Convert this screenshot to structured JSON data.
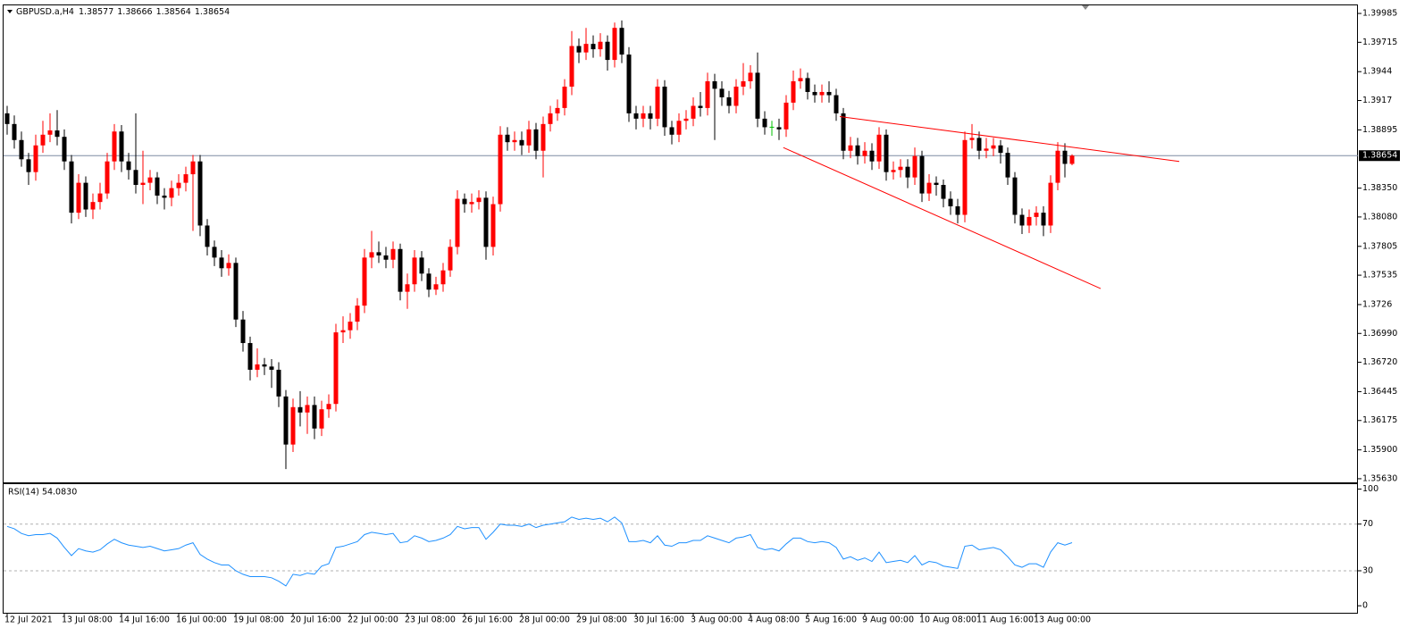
{
  "chart_data": [
    {
      "type": "candlestick",
      "title": "GBPUSD.a,H4",
      "categories": [
        "12 Jul 2021",
        null,
        null,
        null,
        null,
        null,
        null,
        null,
        "13 Jul 08:00",
        null,
        null,
        null,
        null,
        null,
        null,
        null,
        "14 Jul 16:00",
        null,
        null,
        null,
        null,
        null,
        null,
        null,
        "16 Jul 00:00",
        null,
        null,
        null,
        null,
        null,
        null,
        null,
        "19 Jul 08:00",
        null,
        null,
        null,
        null,
        null,
        null,
        null,
        "20 Jul 16:00",
        null,
        null,
        null,
        null,
        null,
        null,
        null,
        "22 Jul 00:00",
        null,
        null,
        null,
        null,
        null,
        null,
        null,
        "23 Jul 08:00",
        null,
        null,
        null,
        null,
        null,
        null,
        null,
        "26 Jul 16:00",
        null,
        null,
        null,
        null,
        null,
        null,
        null,
        "28 Jul 00:00",
        null,
        null,
        null,
        null,
        null,
        null,
        null,
        "29 Jul 08:00",
        null,
        null,
        null,
        null,
        null,
        null,
        null,
        "30 Jul 16:00",
        null,
        null,
        null,
        null,
        null,
        null,
        null,
        "3 Aug 00:00",
        null,
        null,
        null,
        null,
        null,
        null,
        null,
        "4 Aug 08:00",
        null,
        null,
        null,
        null,
        null,
        null,
        null,
        "5 Aug 16:00",
        null,
        null,
        null,
        null,
        null,
        null,
        null,
        "9 Aug 00:00",
        null,
        null,
        null,
        null,
        null,
        null,
        null,
        "10 Aug 08:00",
        null,
        null,
        null,
        null,
        null,
        null,
        null,
        "11 Aug 16:00",
        null,
        null,
        null,
        null,
        null,
        null,
        null,
        "13 Aug 00:00",
        null,
        null,
        null,
        null,
        null
      ],
      "open": [
        1.3905,
        1.3895,
        1.388,
        1.3862,
        1.385,
        1.3875,
        1.3885,
        1.3889,
        1.3883,
        1.386,
        1.3812,
        1.384,
        1.3815,
        1.3822,
        1.383,
        1.386,
        1.3888,
        1.386,
        1.3852,
        1.3838,
        1.384,
        1.3845,
        1.3828,
        1.3826,
        1.3835,
        1.384,
        1.3848,
        1.386,
        1.38,
        1.378,
        1.377,
        1.376,
        1.3765,
        1.3712,
        1.369,
        1.3665,
        1.367,
        1.3668,
        1.3665,
        1.364,
        1.3595,
        1.363,
        1.3625,
        1.3632,
        1.361,
        1.3628,
        1.3633,
        1.37,
        1.3702,
        1.371,
        1.3725,
        1.377,
        1.3775,
        1.3772,
        1.3768,
        1.3778,
        1.3738,
        1.3745,
        1.377,
        1.3755,
        1.374,
        1.3745,
        1.3758,
        1.378,
        1.3825,
        1.382,
        1.3822,
        1.3826,
        1.378,
        1.382,
        1.3885,
        1.3878,
        1.388,
        1.3875,
        1.389,
        1.387,
        1.3895,
        1.3905,
        1.391,
        1.393,
        1.3968,
        1.3962,
        1.397,
        1.3965,
        1.3972,
        1.3955,
        1.3985,
        1.396,
        1.3905,
        1.39,
        1.3905,
        1.39,
        1.393,
        1.3892,
        1.3885,
        1.3898,
        1.39,
        1.3912,
        1.391,
        1.3935,
        1.3928,
        1.392,
        1.3912,
        1.393,
        1.3935,
        1.3943,
        1.39,
        1.3892,
        1.3892,
        1.389,
        1.3915,
        1.3935,
        1.3938,
        1.3925,
        1.3922,
        1.3925,
        1.3922,
        1.3905,
        1.387,
        1.3875,
        1.3865,
        1.387,
        1.386,
        1.3885,
        1.385,
        1.3852,
        1.3855,
        1.3845,
        1.3865,
        1.383,
        1.384,
        1.3838,
        1.3825,
        1.3818,
        1.381,
        1.388,
        1.3882,
        1.387,
        1.3872,
        1.3875,
        1.3868,
        1.3845,
        1.381,
        1.38,
        1.3808,
        1.3812,
        1.38,
        1.384,
        1.387,
        1.38577
      ],
      "high": [
        1.3912,
        1.3903,
        1.3888,
        1.3868,
        1.3885,
        1.3898,
        1.3905,
        1.3908,
        1.389,
        1.3866,
        1.3848,
        1.3846,
        1.383,
        1.384,
        1.3868,
        1.3895,
        1.3894,
        1.3868,
        1.3905,
        1.387,
        1.3852,
        1.385,
        1.3835,
        1.3842,
        1.3848,
        1.3855,
        1.3866,
        1.3866,
        1.3806,
        1.3786,
        1.3777,
        1.3773,
        1.377,
        1.372,
        1.3696,
        1.3685,
        1.3676,
        1.3675,
        1.3672,
        1.3646,
        1.3638,
        1.3645,
        1.364,
        1.364,
        1.3636,
        1.3642,
        1.3708,
        1.3715,
        1.3718,
        1.3732,
        1.3778,
        1.3795,
        1.3785,
        1.378,
        1.3785,
        1.3783,
        1.3755,
        1.3777,
        1.3776,
        1.376,
        1.3752,
        1.3765,
        1.3787,
        1.3833,
        1.383,
        1.383,
        1.3833,
        1.3832,
        1.3827,
        1.3893,
        1.3892,
        1.3888,
        1.3888,
        1.3898,
        1.3896,
        1.3902,
        1.3912,
        1.3918,
        1.3937,
        1.3982,
        1.3975,
        1.3985,
        1.3978,
        1.398,
        1.3978,
        1.399,
        1.3992,
        1.3967,
        1.3912,
        1.3912,
        1.3912,
        1.3937,
        1.3936,
        1.3898,
        1.3905,
        1.3908,
        1.392,
        1.3925,
        1.3943,
        1.3942,
        1.3935,
        1.3926,
        1.3937,
        1.3952,
        1.395,
        1.3962,
        1.3907,
        1.3898,
        1.39,
        1.3922,
        1.3945,
        1.3947,
        1.3943,
        1.3932,
        1.3932,
        1.3935,
        1.3928,
        1.391,
        1.3883,
        1.3882,
        1.3878,
        1.3877,
        1.3892,
        1.389,
        1.386,
        1.3862,
        1.3862,
        1.3873,
        1.387,
        1.3848,
        1.3846,
        1.3843,
        1.3832,
        1.3825,
        1.3888,
        1.3895,
        1.3888,
        1.3882,
        1.3882,
        1.388,
        1.3873,
        1.385,
        1.3816,
        1.3815,
        1.3818,
        1.3818,
        1.3847,
        1.3878,
        1.3877,
        1.38666
      ],
      "low": [
        1.3885,
        1.3872,
        1.3855,
        1.3838,
        1.3842,
        1.3868,
        1.3878,
        1.3875,
        1.3852,
        1.3802,
        1.3806,
        1.3808,
        1.3806,
        1.3815,
        1.3825,
        1.3852,
        1.385,
        1.3843,
        1.383,
        1.382,
        1.3833,
        1.382,
        1.3815,
        1.3818,
        1.3828,
        1.3832,
        1.3795,
        1.379,
        1.3772,
        1.3762,
        1.3752,
        1.3753,
        1.3705,
        1.3682,
        1.3655,
        1.3658,
        1.366,
        1.3648,
        1.363,
        1.3572,
        1.3588,
        1.3612,
        1.3605,
        1.36,
        1.3603,
        1.362,
        1.3626,
        1.369,
        1.3694,
        1.3702,
        1.3718,
        1.376,
        1.3765,
        1.376,
        1.376,
        1.373,
        1.3722,
        1.3738,
        1.3748,
        1.3733,
        1.3735,
        1.3738,
        1.3752,
        1.3773,
        1.3812,
        1.3812,
        1.3815,
        1.3768,
        1.3772,
        1.3813,
        1.387,
        1.387,
        1.3866,
        1.3868,
        1.3862,
        1.3845,
        1.3888,
        1.3898,
        1.3903,
        1.3922,
        1.3952,
        1.3955,
        1.3957,
        1.3958,
        1.3945,
        1.3948,
        1.3952,
        1.3897,
        1.389,
        1.3892,
        1.389,
        1.3893,
        1.3884,
        1.3876,
        1.3878,
        1.389,
        1.3893,
        1.3902,
        1.3903,
        1.388,
        1.3912,
        1.3905,
        1.3905,
        1.3922,
        1.3928,
        1.3892,
        1.3885,
        1.3884,
        1.388,
        1.3883,
        1.3908,
        1.3928,
        1.3918,
        1.3915,
        1.3915,
        1.3915,
        1.3898,
        1.3862,
        1.3863,
        1.3857,
        1.3858,
        1.3852,
        1.3853,
        1.3842,
        1.3843,
        1.3845,
        1.3835,
        1.3838,
        1.3822,
        1.3823,
        1.3828,
        1.3817,
        1.381,
        1.3802,
        1.3803,
        1.3872,
        1.3862,
        1.3863,
        1.3865,
        1.3858,
        1.3838,
        1.3802,
        1.3792,
        1.3793,
        1.38,
        1.379,
        1.3793,
        1.3833,
        1.3845,
        1.38564
      ],
      "close": [
        1.3895,
        1.388,
        1.3862,
        1.385,
        1.3875,
        1.3885,
        1.3889,
        1.3883,
        1.386,
        1.3812,
        1.384,
        1.3815,
        1.3822,
        1.383,
        1.386,
        1.3888,
        1.386,
        1.3852,
        1.3838,
        1.384,
        1.3845,
        1.3828,
        1.3826,
        1.3835,
        1.384,
        1.3848,
        1.386,
        1.38,
        1.378,
        1.377,
        1.376,
        1.3765,
        1.3712,
        1.369,
        1.3665,
        1.367,
        1.3668,
        1.3665,
        1.364,
        1.3595,
        1.363,
        1.3625,
        1.3632,
        1.361,
        1.3628,
        1.3633,
        1.37,
        1.3702,
        1.371,
        1.3725,
        1.377,
        1.3775,
        1.3772,
        1.3768,
        1.3778,
        1.3738,
        1.3745,
        1.377,
        1.3755,
        1.374,
        1.3745,
        1.3758,
        1.378,
        1.3825,
        1.382,
        1.3822,
        1.3826,
        1.378,
        1.382,
        1.3885,
        1.3878,
        1.388,
        1.3875,
        1.389,
        1.387,
        1.3895,
        1.3905,
        1.391,
        1.393,
        1.3968,
        1.3962,
        1.397,
        1.3965,
        1.3972,
        1.3955,
        1.3985,
        1.396,
        1.3905,
        1.39,
        1.3905,
        1.39,
        1.393,
        1.3892,
        1.3885,
        1.3898,
        1.39,
        1.3912,
        1.391,
        1.3935,
        1.3928,
        1.392,
        1.3912,
        1.393,
        1.3935,
        1.3943,
        1.39,
        1.3892,
        1.3892,
        1.389,
        1.3915,
        1.3935,
        1.3938,
        1.3925,
        1.3922,
        1.3925,
        1.3922,
        1.3905,
        1.387,
        1.3875,
        1.3865,
        1.387,
        1.386,
        1.3885,
        1.385,
        1.3852,
        1.3855,
        1.3845,
        1.3865,
        1.383,
        1.384,
        1.3838,
        1.3825,
        1.3818,
        1.381,
        1.388,
        1.3882,
        1.387,
        1.3872,
        1.3875,
        1.3868,
        1.3845,
        1.381,
        1.38,
        1.3808,
        1.3812,
        1.38,
        1.384,
        1.387,
        1.38577,
        1.38654
      ],
      "bull_color": "#ff0000",
      "bear_color": "#000000",
      "doji_color": "#00c000",
      "current_price_color": "#7d8ca3",
      "ylim": [
        1.35596,
        1.40069
      ],
      "yticks": [
        1.39985,
        1.39715,
        1.3944,
        1.3917,
        1.38895,
        {
          "value": 1.3835,
          "label": "1.38350"
        },
        {
          "value": 1.3808,
          "label": "1.38080"
        },
        1.37805,
        1.37535,
        1.3726,
        {
          "value": 1.3699,
          "label": "1.36990"
        },
        {
          "value": 1.3672,
          "label": "1.36720"
        },
        1.36445,
        1.36175,
        {
          "value": 1.359,
          "label": "1.35900"
        },
        {
          "value": 1.3563,
          "label": "1.35630"
        }
      ],
      "trendlines": [
        {
          "start": [
            116.5,
            1.3902
          ],
          "end": [
            164,
            1.386
          ],
          "color": "#ff0000"
        },
        {
          "start": [
            108.6,
            1.3873
          ],
          "end": [
            153,
            1.3741
          ],
          "color": "#ff0000"
        }
      ]
    },
    {
      "type": "line",
      "title": "RSI(14) 54.0830",
      "color": "#1e90ff",
      "values": [
        68,
        66,
        62,
        60,
        61,
        61,
        62,
        58,
        50,
        43,
        49,
        47,
        46,
        48,
        53,
        57,
        54,
        52,
        51,
        50,
        51,
        49,
        47,
        48,
        49,
        52,
        54,
        44,
        40,
        37,
        35,
        35,
        30,
        27,
        25,
        25,
        25,
        24,
        21,
        17,
        27,
        26,
        28,
        27,
        34,
        36,
        50,
        51,
        53,
        55,
        61,
        63,
        62,
        61,
        62,
        54,
        55,
        60,
        58,
        55,
        56,
        58,
        61,
        68,
        66,
        67,
        67,
        57,
        63,
        70,
        69,
        69,
        68,
        70,
        67,
        69,
        70,
        71,
        72,
        76,
        74,
        75,
        74,
        75,
        72,
        76,
        71,
        55,
        55,
        56,
        54,
        60,
        52,
        51,
        54,
        54,
        56,
        56,
        60,
        58,
        56,
        54,
        58,
        59,
        61,
        50,
        48,
        49,
        47,
        53,
        58,
        58,
        55,
        54,
        55,
        54,
        50,
        40,
        42,
        39,
        41,
        38,
        46,
        37,
        38,
        39,
        37,
        43,
        35,
        38,
        37,
        34,
        33,
        32,
        51,
        52,
        48,
        49,
        50,
        48,
        42,
        35,
        33,
        36,
        36,
        33,
        46,
        54,
        52,
        54.083
      ],
      "ylim": [
        -6,
        105
      ],
      "yticks": [
        100,
        70,
        30,
        0
      ],
      "levels": [
        70,
        30
      ]
    }
  ]
}
